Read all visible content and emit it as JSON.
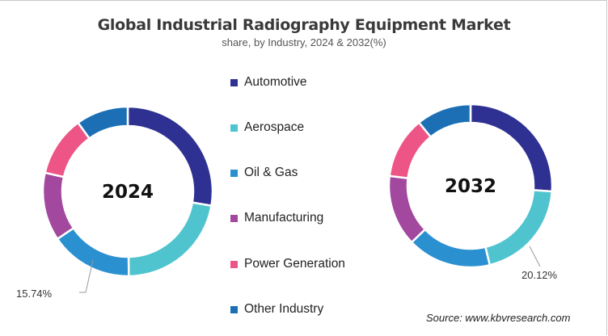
{
  "chart_data": {
    "type": "pie",
    "variant": "donut",
    "title": "Global Industrial Radiography Equipment Market",
    "subtitle": "share, by Industry, 2024 & 2032(%)",
    "categories": [
      "Automotive",
      "Aerospace",
      "Oil & Gas",
      "Manufacturing",
      "Power Generation",
      "Other Industry"
    ],
    "colors": [
      "#2E3192",
      "#4FC4CF",
      "#2A90D0",
      "#A2489E",
      "#EE5587",
      "#1C6FB5"
    ],
    "legend_position": "center",
    "series": [
      {
        "name": "2024",
        "values": [
          27.7,
          22.1,
          15.74,
          13.0,
          11.5,
          9.96
        ],
        "data_label": "15.74%"
      },
      {
        "name": "2032",
        "values": [
          26.1,
          20.12,
          16.6,
          14.1,
          12.2,
          10.88
        ],
        "data_label": "20.12%"
      }
    ]
  },
  "source": "Source: www.kbvresearch.com"
}
